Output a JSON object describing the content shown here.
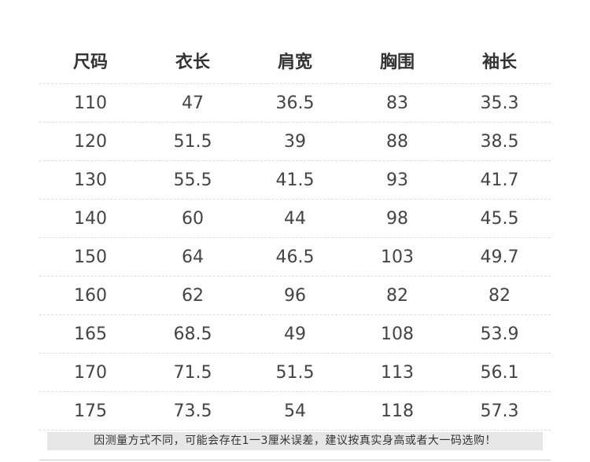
{
  "table": {
    "header": [
      "尺码",
      "衣长",
      "肩宽",
      "胸围",
      "袖长"
    ],
    "rows": [
      [
        "110",
        "47",
        "36.5",
        "83",
        "35.3"
      ],
      [
        "120",
        "51.5",
        "39",
        "88",
        "38.5"
      ],
      [
        "130",
        "55.5",
        "41.5",
        "93",
        "41.7"
      ],
      [
        "140",
        "60",
        "44",
        "98",
        "45.5"
      ],
      [
        "150",
        "64",
        "46.5",
        "103",
        "49.7"
      ],
      [
        "160",
        "62",
        "96",
        "82",
        "82"
      ],
      [
        "165",
        "68.5",
        "49",
        "108",
        "53.9"
      ],
      [
        "170",
        "71.5",
        "51.5",
        "113",
        "56.1"
      ],
      [
        "175",
        "73.5",
        "54",
        "118",
        "57.3"
      ]
    ]
  },
  "note": "因测量方式不同，可能会存在1一3厘米误差，建议按真实身高或者大一码选购！"
}
